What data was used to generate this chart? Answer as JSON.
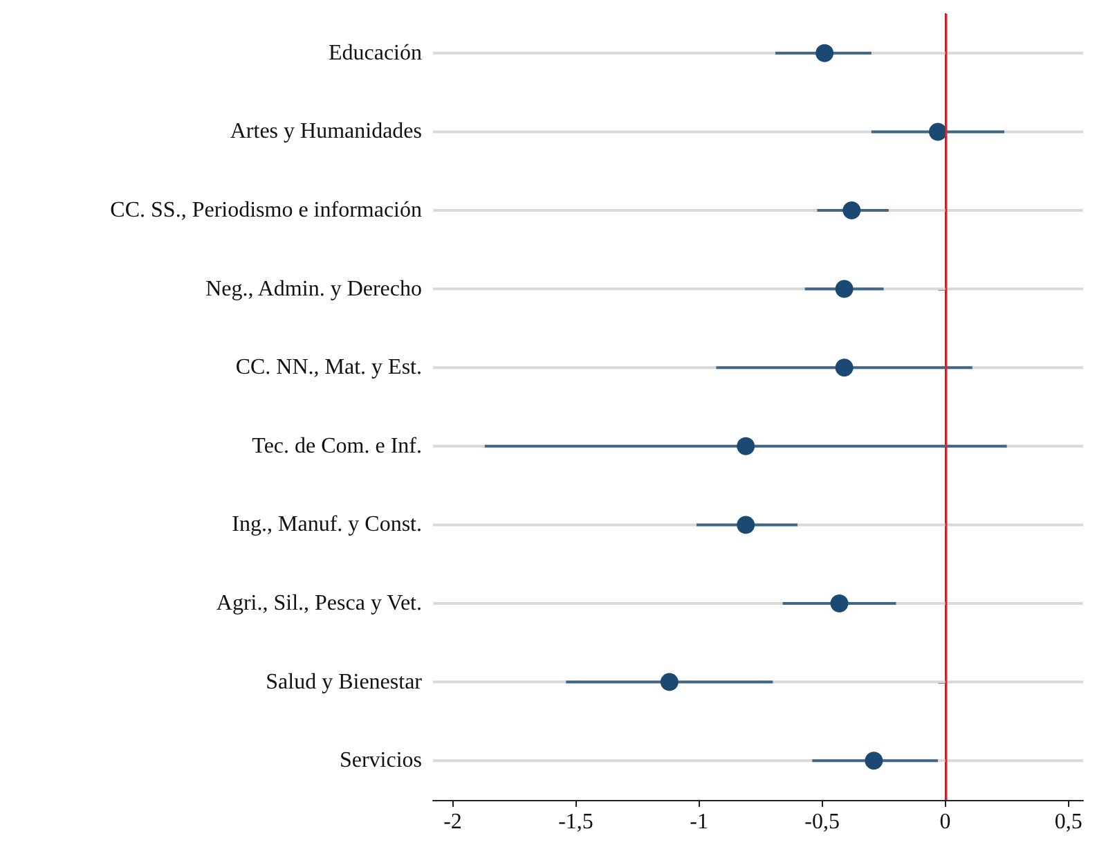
{
  "chart_data": {
    "type": "scatter",
    "orientation": "horizontal",
    "categories": [
      "Educación",
      "Artes y Humanidades",
      "CC. SS., Periodismo e información",
      "Neg., Admin. y Derecho",
      "CC. NN., Mat. y Est.",
      "Tec. de Com. e Inf.",
      "Ing., Manuf. y Const.",
      "Agri., Sil., Pesca y Vet.",
      "Salud y Bienestar",
      "Servicios"
    ],
    "values": [
      -0.49,
      -0.03,
      -0.38,
      -0.41,
      -0.41,
      -0.81,
      -0.81,
      -0.43,
      -1.12,
      -0.29
    ],
    "errors": [
      [
        -0.69,
        -0.3
      ],
      [
        -0.3,
        0.24
      ],
      [
        -0.52,
        -0.23
      ],
      [
        -0.57,
        -0.25
      ],
      [
        -0.93,
        0.11
      ],
      [
        -1.87,
        0.25
      ],
      [
        -1.01,
        -0.6
      ],
      [
        -0.66,
        -0.2
      ],
      [
        -1.54,
        -0.7
      ],
      [
        -0.54,
        -0.03
      ]
    ],
    "color": "#1a4a72",
    "xlim": [
      -2.08,
      0.56
    ],
    "xticks": [
      {
        "value": -2,
        "label": "-2"
      },
      {
        "value": -1.5,
        "label": "-1,5"
      },
      {
        "value": -1,
        "label": "-1"
      },
      {
        "value": -0.5,
        "label": "-0,5"
      },
      {
        "value": 0,
        "label": "0"
      },
      {
        "value": 0.5,
        "label": "0,5"
      }
    ],
    "ref_lines": [
      {
        "axis": "x",
        "value": 0,
        "color": "#e3242b"
      }
    ],
    "grid": "y",
    "marker": "circle"
  }
}
